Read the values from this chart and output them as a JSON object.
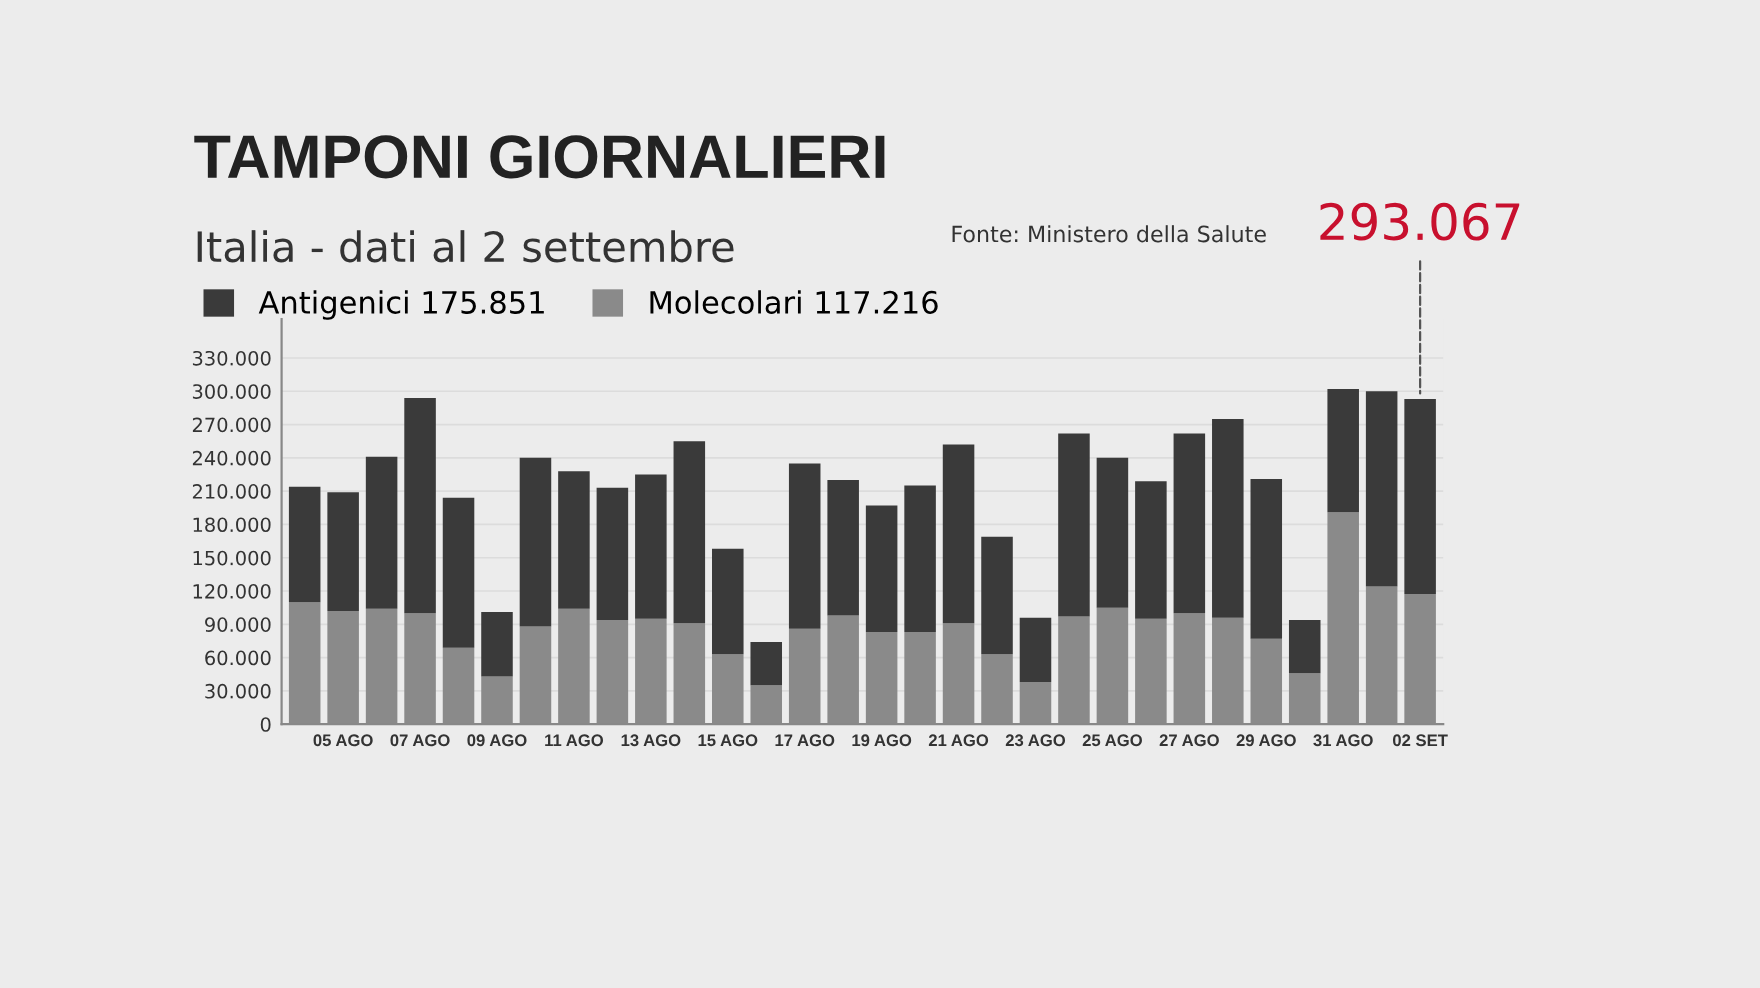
{
  "chart_data": {
    "type": "bar",
    "stacked": true,
    "title": "TAMPONI GIORNALIERI",
    "subtitle": "Italia - dati al 2 settembre",
    "categories": [
      null,
      "05 AGO",
      null,
      "07 AGO",
      null,
      "09 AGO",
      null,
      "11 AGO",
      null,
      "13 AGO",
      null,
      "15 AGO",
      null,
      "17 AGO",
      null,
      "19 AGO",
      null,
      "21 AGO",
      null,
      "23 AGO",
      null,
      "25 AGO",
      null,
      "27 AGO",
      null,
      "29 AGO",
      null,
      "31 AGO",
      null,
      "02 SET"
    ],
    "series": [
      {
        "name": "Molecolari 117.216",
        "color": "#8a8a8a",
        "values": [
          110000,
          102000,
          104000,
          100000,
          69000,
          43000,
          88000,
          104000,
          94000,
          95000,
          91000,
          63000,
          35000,
          86000,
          98000,
          83000,
          83000,
          91000,
          63000,
          38000,
          97000,
          105000,
          95000,
          100000,
          96000,
          77000,
          46000,
          191000,
          124000,
          117216
        ]
      },
      {
        "name": "Antigenici 175.851",
        "color": "#3a3a3a",
        "values": [
          104000,
          107000,
          137000,
          194000,
          135000,
          58000,
          152000,
          124000,
          119000,
          130000,
          164000,
          95000,
          39000,
          149000,
          122000,
          114000,
          132000,
          161000,
          106000,
          58000,
          165000,
          135000,
          124000,
          162000,
          179000,
          144000,
          48000,
          111000,
          176000,
          175851
        ]
      }
    ],
    "ylim": [
      0,
      365000
    ],
    "yticks": [
      0,
      {
        "value": 30000,
        "label": "30.000"
      },
      {
        "value": 60000,
        "label": "60.000"
      },
      {
        "value": 90000,
        "label": "90.000"
      },
      {
        "value": 120000,
        "label": "120.000"
      },
      {
        "value": 150000,
        "label": "150.000"
      },
      {
        "value": 180000,
        "label": "180.000"
      },
      {
        "value": 210000,
        "label": "210.000"
      },
      {
        "value": 240000,
        "label": "240.000"
      },
      {
        "value": 270000,
        "label": "270.000"
      },
      {
        "value": 300000,
        "label": "300.000"
      },
      {
        "value": 330000,
        "label": "330.000"
      }
    ],
    "grid": "y",
    "legend": "top left",
    "annotations": [
      "Fonte: Ministero della Salute",
      {
        "text": "293.067",
        "x": "02 SET",
        "y": 293067
      }
    ]
  }
}
